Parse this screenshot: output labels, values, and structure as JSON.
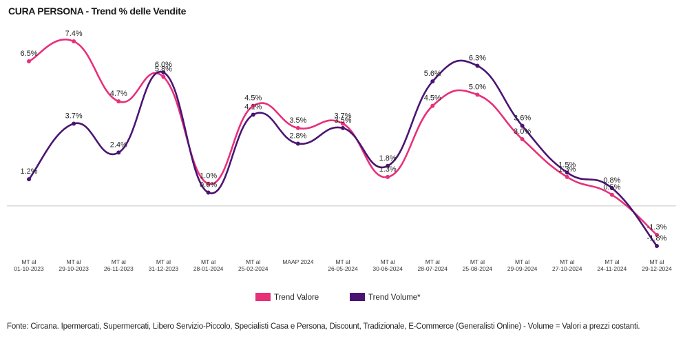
{
  "title": "CURA PERSONA - Trend % delle Vendite",
  "source_note": "Fonte: Circana. Ipermercati, Supermercati, Libero Servizio-Piccolo, Specialisti Casa e Persona, Discount, Tradizionale, E-Commerce (Generalisti Online) - Volume = Valori a prezzi costanti.",
  "chart_data": {
    "type": "line",
    "title": "CURA PERSONA - Trend % delle Vendite",
    "xlabel": "",
    "ylabel": "",
    "ylim": [
      -2.0,
      8.0
    ],
    "grid": false,
    "legend_position": "bottom",
    "categories": [
      [
        "MT al",
        "01-10-2023"
      ],
      [
        "MT al",
        "29-10-2023"
      ],
      [
        "MT al",
        "26-11-2023"
      ],
      [
        "MT al",
        "31-12-2023"
      ],
      [
        "MT al",
        "28-01-2024"
      ],
      [
        "MT al",
        "25-02-2024"
      ],
      [
        "MAAP 2024"
      ],
      [
        "MT al",
        "26-05-2024"
      ],
      [
        "MT al",
        "30-06-2024"
      ],
      [
        "MT al",
        "28-07-2024"
      ],
      [
        "MT al",
        "25-08-2024"
      ],
      [
        "MT al",
        "29-09-2024"
      ],
      [
        "MT al",
        "27-10-2024"
      ],
      [
        "MT al",
        "24-11-2024"
      ],
      [
        "MT al",
        "29-12-2024"
      ]
    ],
    "series": [
      {
        "name": "Trend Valore",
        "color": "#e8307a",
        "values": [
          6.5,
          7.4,
          4.7,
          5.8,
          1.0,
          4.5,
          3.5,
          3.7,
          1.3,
          4.5,
          5.0,
          3.0,
          1.3,
          0.5,
          -1.3
        ],
        "labels": [
          "6.5%",
          "7.4%",
          "4.7%",
          "5.8%",
          "1.0%",
          "4.5%",
          "3.5%",
          "3.7%",
          "1.3%",
          "4.5%",
          "5.0%",
          "3.0%",
          "1.3%",
          "0.5%",
          "-1.3%"
        ]
      },
      {
        "name": "Trend Volume*",
        "color": "#4a1572",
        "values": [
          1.2,
          3.7,
          2.4,
          6.0,
          0.6,
          4.1,
          2.8,
          3.5,
          1.8,
          5.6,
          6.3,
          3.6,
          1.5,
          0.8,
          -1.8
        ],
        "labels": [
          "1.2%",
          "3.7%",
          "2.4%",
          "6.0%",
          "0.6%",
          "4.1%",
          "2.8%",
          "3.5%",
          "1.8%",
          "5.6%",
          "6.3%",
          "3.6%",
          "1.5%",
          "0.8%",
          "-1.8%"
        ]
      }
    ]
  }
}
